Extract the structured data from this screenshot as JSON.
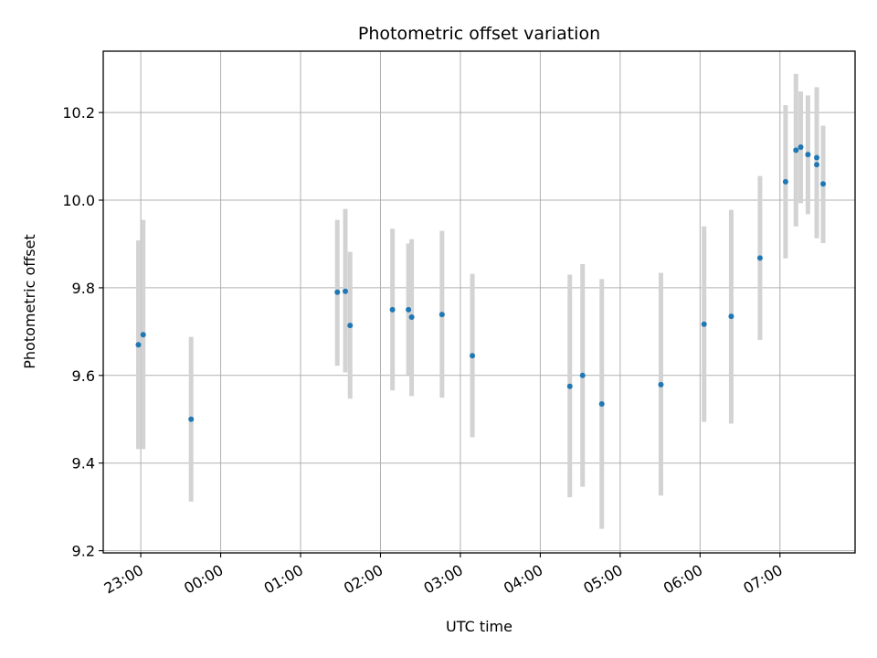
{
  "chart_data": {
    "type": "scatter",
    "title": "Photometric offset variation",
    "xlabel": "UTC time",
    "ylabel": "Photometric offset",
    "grid": true,
    "x_unit": "hours since 23:00",
    "xlim": [
      -0.47,
      8.94
    ],
    "ylim": [
      9.195,
      10.34
    ],
    "x_ticks": [
      {
        "value": 0,
        "label": "23:00"
      },
      {
        "value": 1,
        "label": "00:00"
      },
      {
        "value": 2,
        "label": "01:00"
      },
      {
        "value": 3,
        "label": "02:00"
      },
      {
        "value": 4,
        "label": "03:00"
      },
      {
        "value": 5,
        "label": "04:00"
      },
      {
        "value": 6,
        "label": "05:00"
      },
      {
        "value": 7,
        "label": "06:00"
      },
      {
        "value": 8,
        "label": "07:00"
      }
    ],
    "y_ticks": [
      {
        "value": 9.2,
        "label": "9.2"
      },
      {
        "value": 9.4,
        "label": "9.4"
      },
      {
        "value": 9.6,
        "label": "9.6"
      },
      {
        "value": 9.8,
        "label": "9.8"
      },
      {
        "value": 10.0,
        "label": "10.0"
      },
      {
        "value": 10.2,
        "label": "10.2"
      }
    ],
    "colors": {
      "point": "#1f77b4",
      "errorbar": "#d3d3d3"
    },
    "points": [
      {
        "x": -0.03,
        "y": 9.67,
        "yerr_low": 9.432,
        "yerr_high": 9.908
      },
      {
        "x": 0.03,
        "y": 9.693,
        "yerr_low": 9.432,
        "yerr_high": 9.955
      },
      {
        "x": 0.63,
        "y": 9.5,
        "yerr_low": 9.312,
        "yerr_high": 9.688
      },
      {
        "x": 2.46,
        "y": 9.79,
        "yerr_low": 9.622,
        "yerr_high": 9.955
      },
      {
        "x": 2.56,
        "y": 9.792,
        "yerr_low": 9.607,
        "yerr_high": 9.98
      },
      {
        "x": 2.62,
        "y": 9.714,
        "yerr_low": 9.547,
        "yerr_high": 9.882
      },
      {
        "x": 3.15,
        "y": 9.75,
        "yerr_low": 9.566,
        "yerr_high": 9.935
      },
      {
        "x": 3.35,
        "y": 9.75,
        "yerr_low": 9.601,
        "yerr_high": 9.901
      },
      {
        "x": 3.39,
        "y": 9.733,
        "yerr_low": 9.553,
        "yerr_high": 9.911
      },
      {
        "x": 3.77,
        "y": 9.739,
        "yerr_low": 9.549,
        "yerr_high": 9.93
      },
      {
        "x": 4.15,
        "y": 9.645,
        "yerr_low": 9.459,
        "yerr_high": 9.832
      },
      {
        "x": 5.37,
        "y": 9.575,
        "yerr_low": 9.322,
        "yerr_high": 9.83
      },
      {
        "x": 5.53,
        "y": 9.6,
        "yerr_low": 9.346,
        "yerr_high": 9.854
      },
      {
        "x": 5.77,
        "y": 9.535,
        "yerr_low": 9.25,
        "yerr_high": 9.82
      },
      {
        "x": 6.51,
        "y": 9.579,
        "yerr_low": 9.326,
        "yerr_high": 9.834
      },
      {
        "x": 7.05,
        "y": 9.717,
        "yerr_low": 9.494,
        "yerr_high": 9.94
      },
      {
        "x": 7.39,
        "y": 9.735,
        "yerr_low": 9.49,
        "yerr_high": 9.978
      },
      {
        "x": 7.75,
        "y": 9.868,
        "yerr_low": 9.681,
        "yerr_high": 10.055
      },
      {
        "x": 8.07,
        "y": 10.042,
        "yerr_low": 9.867,
        "yerr_high": 10.217
      },
      {
        "x": 8.2,
        "y": 10.114,
        "yerr_low": 9.94,
        "yerr_high": 10.288
      },
      {
        "x": 8.26,
        "y": 10.121,
        "yerr_low": 9.993,
        "yerr_high": 10.248
      },
      {
        "x": 8.35,
        "y": 10.104,
        "yerr_low": 9.968,
        "yerr_high": 10.239
      },
      {
        "x": 8.46,
        "y": 10.097,
        "yerr_low": 9.913,
        "yerr_high": 10.258
      },
      {
        "x": 8.46,
        "y": 10.081,
        "yerr_low": 10.081,
        "yerr_high": 10.081
      },
      {
        "x": 8.54,
        "y": 10.037,
        "yerr_low": 9.902,
        "yerr_high": 10.17
      }
    ]
  }
}
